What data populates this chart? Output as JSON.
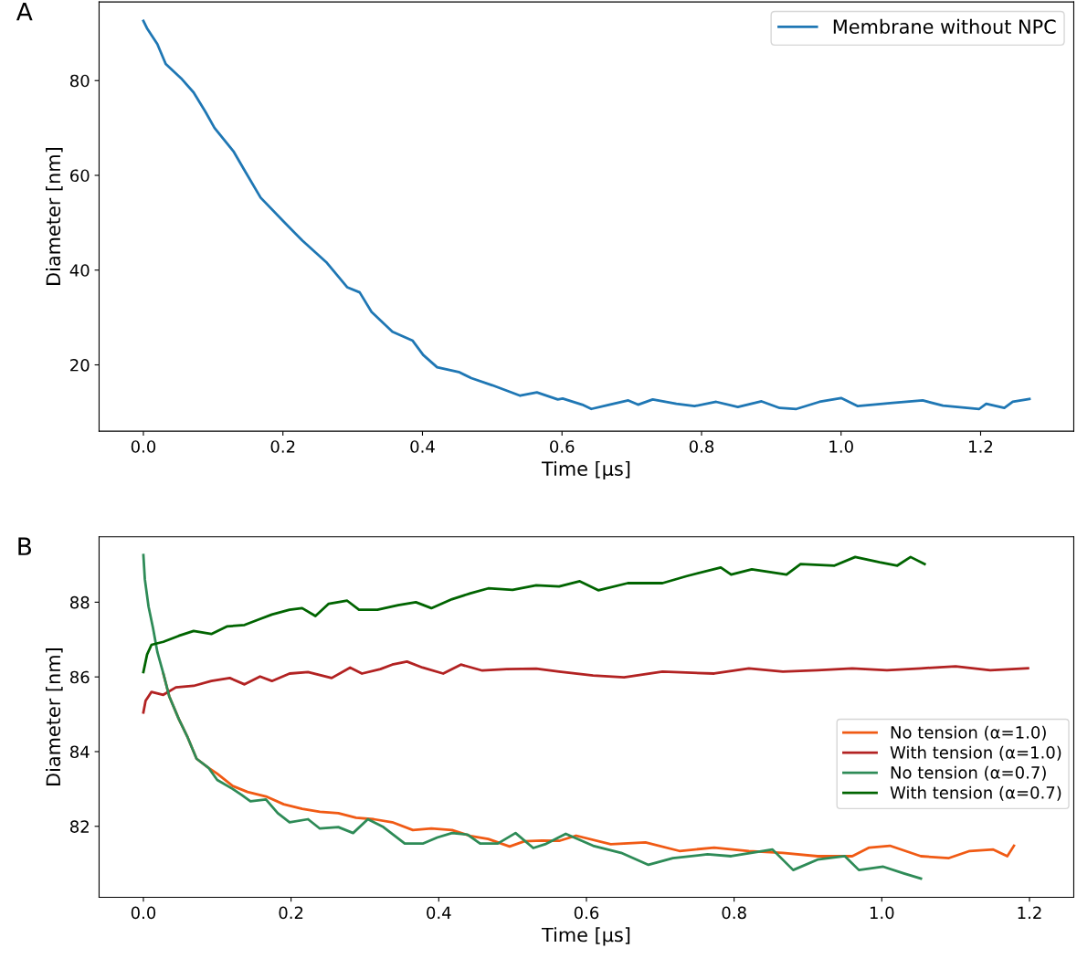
{
  "chart_data": [
    {
      "type": "line",
      "annotations": [
        "A"
      ],
      "xlabel": "Time [μs]",
      "ylabel": "Diameter [nm]",
      "legend": "top right",
      "grid": false,
      "xlim": [
        -0.0635,
        1.3335
      ],
      "ylim": [
        6,
        96.6
      ],
      "xticks": [
        {
          "value": 0,
          "label": "0.0"
        },
        {
          "value": 0.2,
          "label": "0.2"
        },
        {
          "value": 0.4,
          "label": "0.4"
        },
        {
          "value": 0.6,
          "label": "0.6"
        },
        {
          "value": 0.8,
          "label": "0.8"
        },
        {
          "value": 1.0,
          "label": "1.0"
        },
        {
          "value": 1.2,
          "label": "1.2"
        }
      ],
      "yticks": [
        20,
        40,
        60,
        80
      ],
      "series": [
        {
          "name": "Membrane without NPC",
          "color": "#1f77b4",
          "x": [
            0,
            0.005,
            0.02,
            0.032,
            0.054,
            0.072,
            0.089,
            0.102,
            0.129,
            0.144,
            0.168,
            0.2,
            0.228,
            0.262,
            0.292,
            0.31,
            0.327,
            0.357,
            0.386,
            0.401,
            0.421,
            0.452,
            0.47,
            0.5,
            0.54,
            0.564,
            0.594,
            0.601,
            0.629,
            0.642,
            0.668,
            0.695,
            0.709,
            0.73,
            0.764,
            0.79,
            0.821,
            0.852,
            0.886,
            0.912,
            0.936,
            0.969,
            1.0,
            1.024,
            1.074,
            1.117,
            1.146,
            1.198,
            1.208,
            1.234,
            1.246,
            1.27
          ],
          "values": [
            92.6,
            91.1,
            87.7,
            83.5,
            80.5,
            77.5,
            73.4,
            70.0,
            65.1,
            61.3,
            55.3,
            50.4,
            46.2,
            41.7,
            36.4,
            35.3,
            31.2,
            27.0,
            25.1,
            22.1,
            19.5,
            18.5,
            17.2,
            15.7,
            13.5,
            14.2,
            12.7,
            12.9,
            11.6,
            10.7,
            11.6,
            12.5,
            11.6,
            12.7,
            11.8,
            11.3,
            12.2,
            11.1,
            12.3,
            10.9,
            10.7,
            12.2,
            13.0,
            11.3,
            12.0,
            12.5,
            11.4,
            10.7,
            11.8,
            10.9,
            12.2,
            12.8
          ]
        }
      ]
    },
    {
      "type": "line",
      "annotations": [
        "B"
      ],
      "xlabel": "Time [μs]",
      "ylabel": "Diameter [nm]",
      "legend": "right",
      "grid": false,
      "xlim": [
        -0.06,
        1.26
      ],
      "ylim": [
        80.1,
        89.75
      ],
      "xticks": [
        {
          "value": 0,
          "label": "0.0"
        },
        {
          "value": 0.2,
          "label": "0.2"
        },
        {
          "value": 0.4,
          "label": "0.4"
        },
        {
          "value": 0.6,
          "label": "0.6"
        },
        {
          "value": 0.8,
          "label": "0.8"
        },
        {
          "value": 1.0,
          "label": "1.0"
        },
        {
          "value": 1.2,
          "label": "1.2"
        }
      ],
      "yticks": [
        82,
        84,
        86,
        88
      ],
      "series": [
        {
          "name": "No tension (α=1.0)",
          "color": "#f05a14",
          "x": [
            0.027,
            0.035,
            0.048,
            0.06,
            0.072,
            0.088,
            0.1,
            0.121,
            0.141,
            0.166,
            0.19,
            0.215,
            0.239,
            0.264,
            0.288,
            0.312,
            0.337,
            0.365,
            0.39,
            0.418,
            0.443,
            0.467,
            0.496,
            0.516,
            0.54,
            0.563,
            0.586,
            0.633,
            0.68,
            0.726,
            0.773,
            0.82,
            0.866,
            0.913,
            0.96,
            0.983,
            1.011,
            1.053,
            1.091,
            1.119,
            1.151,
            1.17,
            1.179
          ],
          "values": [
            86.09,
            85.48,
            84.87,
            84.38,
            83.81,
            83.57,
            83.41,
            83.08,
            82.92,
            82.8,
            82.59,
            82.47,
            82.39,
            82.35,
            82.23,
            82.19,
            82.11,
            81.9,
            81.94,
            81.9,
            81.74,
            81.66,
            81.46,
            81.6,
            81.62,
            81.61,
            81.75,
            81.52,
            81.57,
            81.34,
            81.43,
            81.34,
            81.29,
            81.2,
            81.2,
            81.43,
            81.48,
            81.2,
            81.15,
            81.34,
            81.38,
            81.2,
            81.48
          ]
        },
        {
          "name": "With tension (α=1.0)",
          "color": "#b22222",
          "x": [
            0,
            0.003,
            0.011,
            0.027,
            0.044,
            0.068,
            0.092,
            0.117,
            0.137,
            0.158,
            0.174,
            0.198,
            0.223,
            0.255,
            0.28,
            0.296,
            0.321,
            0.337,
            0.357,
            0.378,
            0.406,
            0.43,
            0.459,
            0.492,
            0.532,
            0.563,
            0.609,
            0.651,
            0.703,
            0.773,
            0.82,
            0.866,
            0.913,
            0.96,
            1.007,
            1.053,
            1.1,
            1.147,
            1.198
          ],
          "values": [
            85.05,
            85.36,
            85.6,
            85.52,
            85.72,
            85.76,
            85.89,
            85.97,
            85.8,
            86.01,
            85.89,
            86.09,
            86.13,
            85.97,
            86.25,
            86.09,
            86.21,
            86.33,
            86.41,
            86.25,
            86.09,
            86.33,
            86.17,
            86.21,
            86.22,
            86.14,
            86.04,
            85.99,
            86.14,
            86.09,
            86.23,
            86.14,
            86.18,
            86.23,
            86.18,
            86.23,
            86.28,
            86.18,
            86.23
          ]
        },
        {
          "name": "No tension (α=0.7)",
          "color": "#2e8b57",
          "x": [
            0,
            0.002,
            0.007,
            0.013,
            0.019,
            0.027,
            0.035,
            0.048,
            0.06,
            0.072,
            0.088,
            0.1,
            0.121,
            0.133,
            0.145,
            0.166,
            0.182,
            0.198,
            0.223,
            0.239,
            0.264,
            0.284,
            0.304,
            0.325,
            0.354,
            0.379,
            0.398,
            0.418,
            0.439,
            0.456,
            0.48,
            0.504,
            0.528,
            0.544,
            0.572,
            0.609,
            0.647,
            0.684,
            0.717,
            0.764,
            0.796,
            0.852,
            0.88,
            0.913,
            0.95,
            0.969,
            1.002,
            1.03,
            1.053
          ],
          "values": [
            89.26,
            88.61,
            87.88,
            87.31,
            86.66,
            86.09,
            85.48,
            84.87,
            84.38,
            83.81,
            83.57,
            83.24,
            83.0,
            82.84,
            82.67,
            82.72,
            82.35,
            82.11,
            82.19,
            81.94,
            81.98,
            81.82,
            82.19,
            81.98,
            81.54,
            81.54,
            81.7,
            81.82,
            81.78,
            81.54,
            81.54,
            81.82,
            81.42,
            81.52,
            81.8,
            81.48,
            81.29,
            80.97,
            81.15,
            81.25,
            81.2,
            81.38,
            80.83,
            81.11,
            81.2,
            80.83,
            80.92,
            80.74,
            80.6
          ]
        },
        {
          "name": "With tension (α=0.7)",
          "color": "#006400",
          "x": [
            0,
            0.005,
            0.011,
            0.027,
            0.048,
            0.068,
            0.092,
            0.113,
            0.137,
            0.158,
            0.174,
            0.198,
            0.215,
            0.233,
            0.251,
            0.276,
            0.292,
            0.317,
            0.345,
            0.369,
            0.39,
            0.418,
            0.443,
            0.467,
            0.5,
            0.532,
            0.563,
            0.591,
            0.616,
            0.656,
            0.703,
            0.736,
            0.782,
            0.796,
            0.824,
            0.871,
            0.89,
            0.936,
            0.964,
            0.997,
            1.021,
            1.039,
            1.058
          ],
          "values": [
            86.13,
            86.6,
            86.86,
            86.94,
            87.1,
            87.23,
            87.15,
            87.35,
            87.39,
            87.55,
            87.67,
            87.8,
            87.84,
            87.63,
            87.96,
            88.04,
            87.8,
            87.8,
            87.92,
            88.0,
            87.84,
            88.08,
            88.24,
            88.37,
            88.33,
            88.45,
            88.42,
            88.56,
            88.32,
            88.51,
            88.51,
            88.7,
            88.93,
            88.74,
            88.88,
            88.74,
            89.02,
            88.98,
            89.21,
            89.07,
            88.98,
            89.21,
            89.02
          ]
        }
      ]
    }
  ]
}
